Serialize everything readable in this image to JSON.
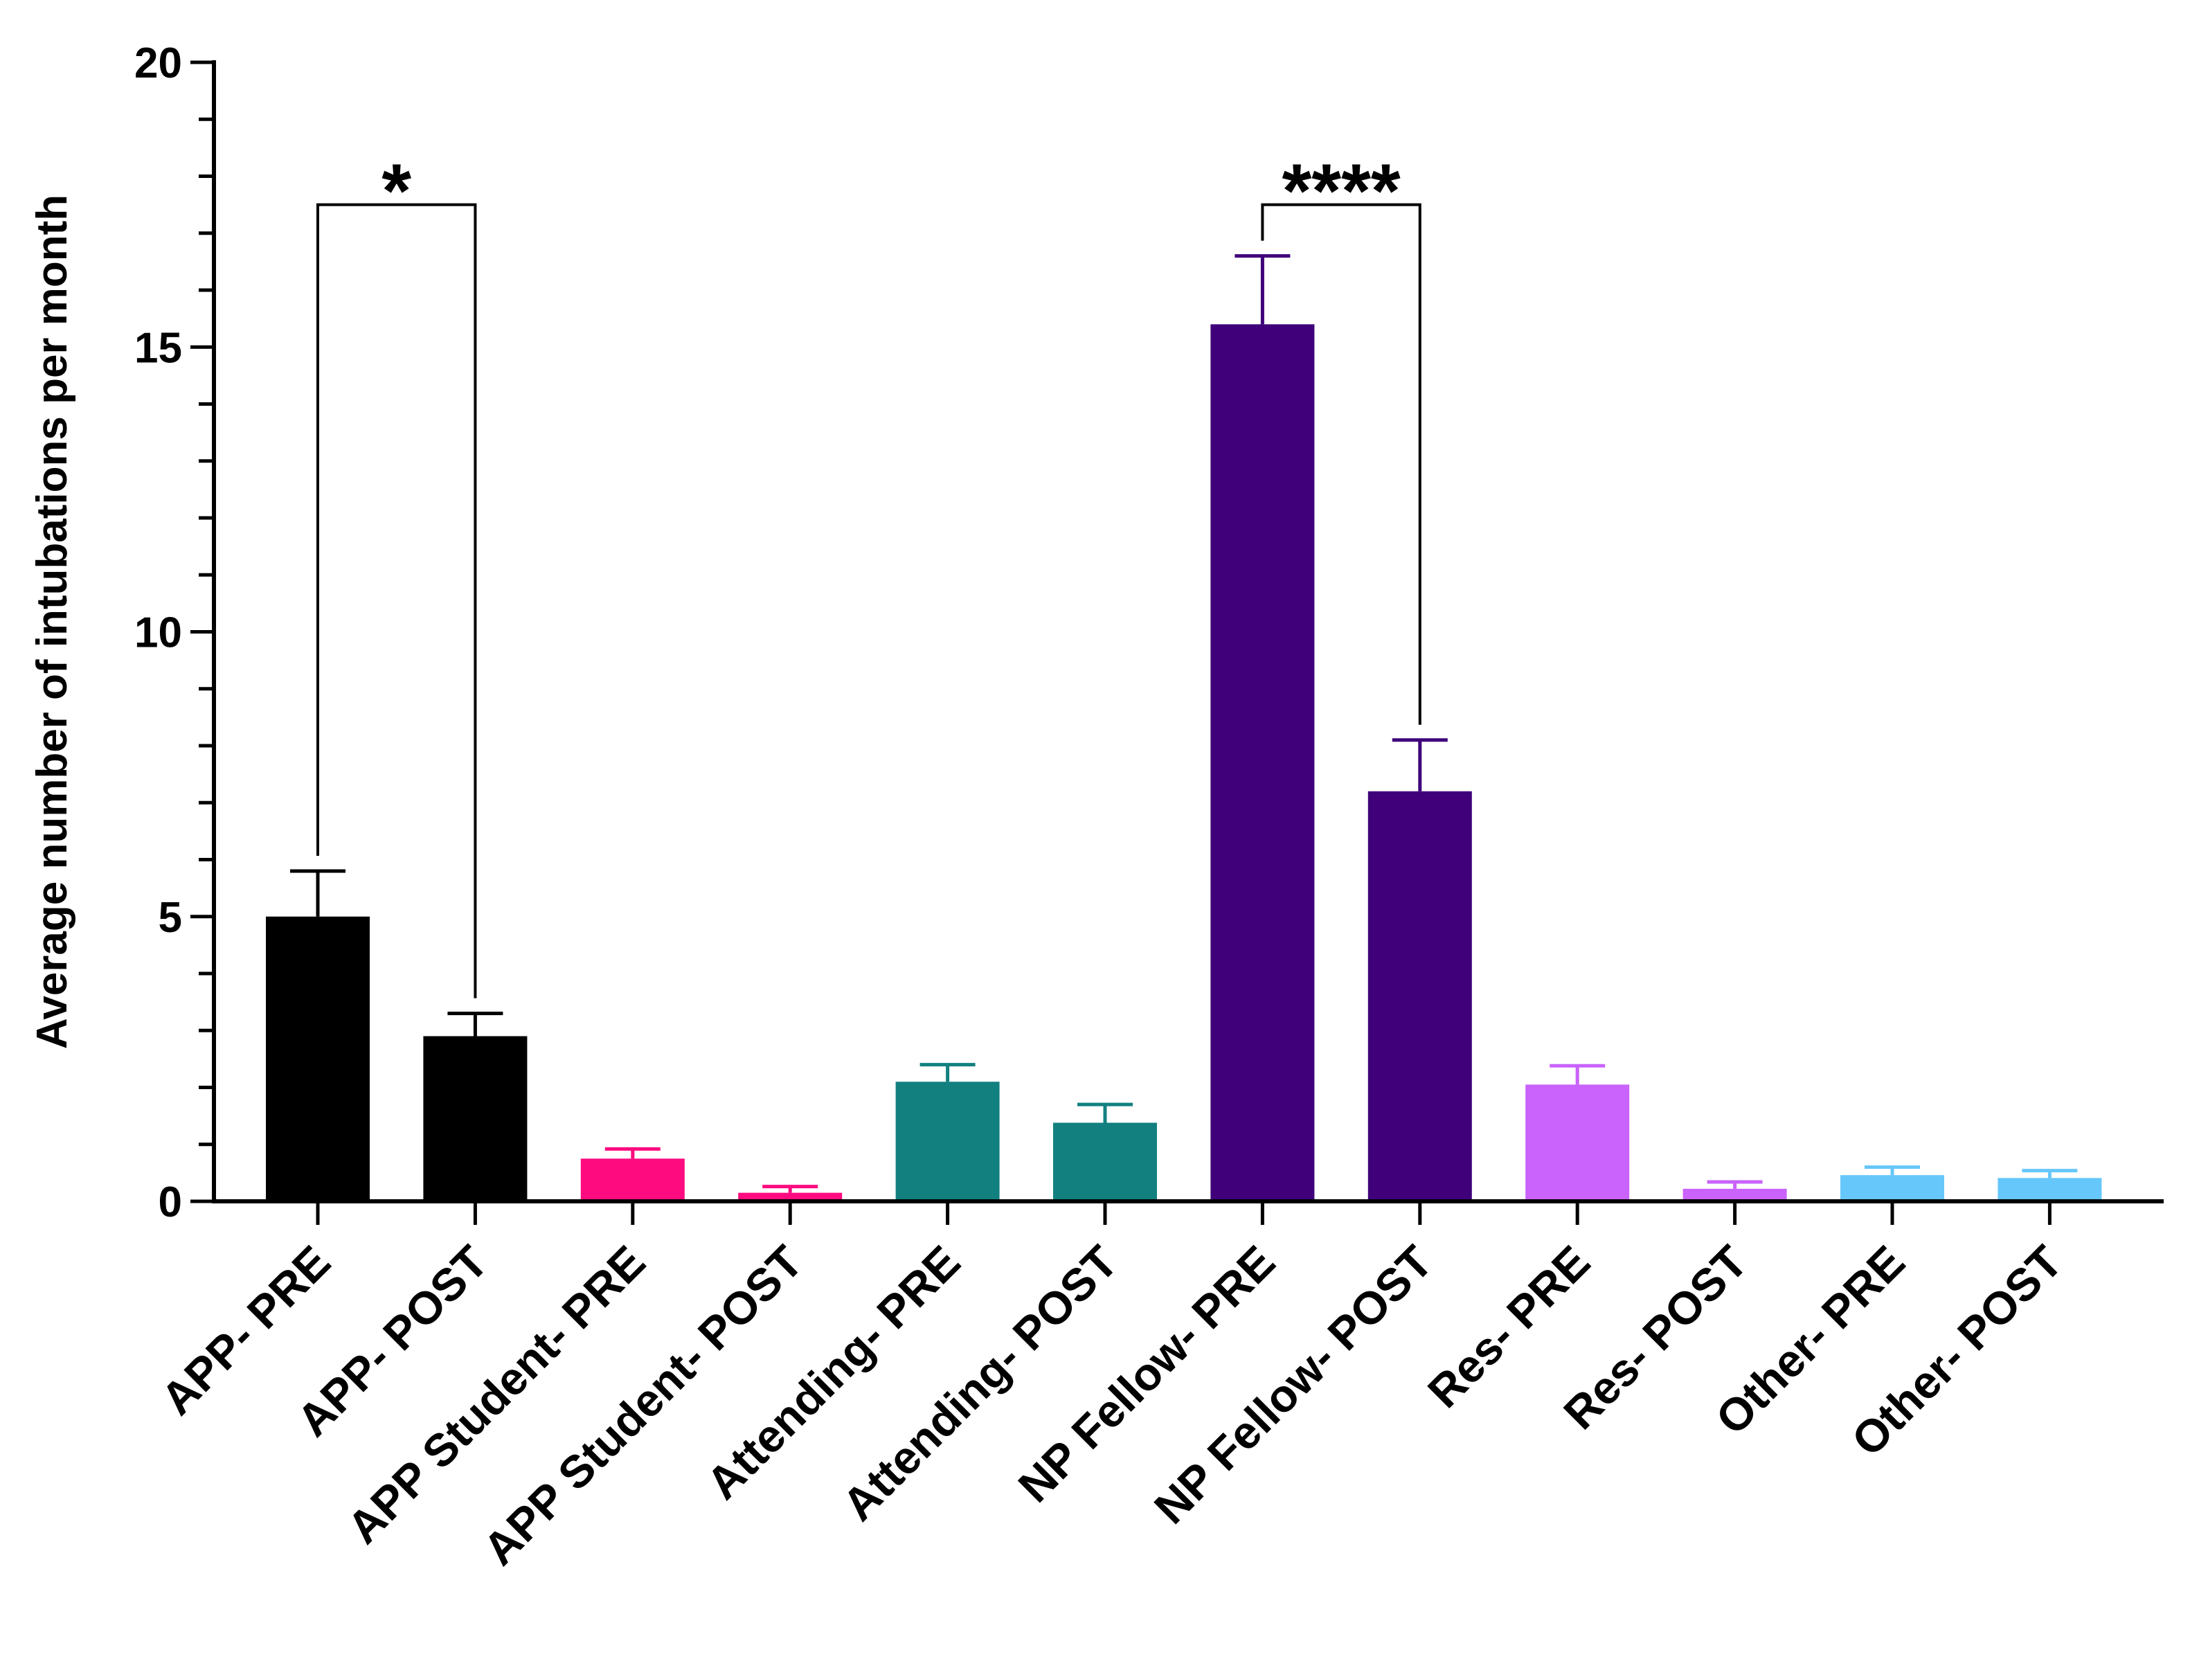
{
  "chart_data": {
    "type": "bar",
    "title": "",
    "xlabel": "",
    "ylabel": "Average number of intubations per month",
    "ylim": [
      0,
      20
    ],
    "yticks": [
      "0",
      "5",
      "10",
      "15",
      "20"
    ],
    "minor_tick_step": 1,
    "grid": false,
    "categories": [
      "APP- PRE",
      "APP- POST",
      "APP Student- PRE",
      "APP Student- POST",
      "Attending- PRE",
      "Attending- POST",
      "NP Fellow- PRE",
      "NP Fellow- POST",
      "Res- PRE",
      "Res- POST",
      "Other- PRE",
      "Other- POST"
    ],
    "values": [
      5.0,
      2.9,
      0.75,
      0.15,
      2.1,
      1.38,
      15.4,
      7.2,
      2.05,
      0.22,
      0.46,
      0.41
    ],
    "error_upper": [
      5.8,
      3.3,
      0.92,
      0.26,
      2.4,
      1.7,
      16.6,
      8.1,
      2.38,
      0.34,
      0.6,
      0.54
    ],
    "colors": [
      "#000000",
      "#000000",
      "#fe0b7f",
      "#fe0b7f",
      "#138080",
      "#138080",
      "#3f007a",
      "#3f007a",
      "#c963fb",
      "#c963fb",
      "#66c7fa",
      "#66c7fa"
    ],
    "significance": [
      {
        "from": 0,
        "to": 1,
        "label": "*",
        "y": 17.5
      },
      {
        "from": 6,
        "to": 7,
        "label": "****",
        "y": 17.5
      }
    ]
  }
}
